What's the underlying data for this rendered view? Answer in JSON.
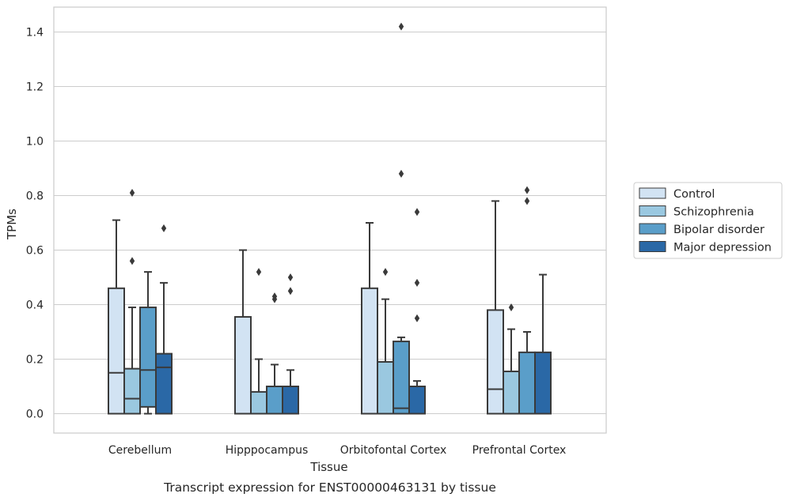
{
  "chart_data": {
    "type": "box",
    "caption": "Transcript expression for ENST00000463131 by tissue",
    "xlabel": "Tissue",
    "ylabel": "TPMs",
    "ylim": [
      -0.07,
      1.49
    ],
    "yticks": [
      0.0,
      0.2,
      0.4,
      0.6,
      0.8,
      1.0,
      1.2,
      1.4
    ],
    "ytick_labels": [
      "0.0",
      "0.2",
      "0.4",
      "0.6",
      "0.8",
      "1.0",
      "1.2",
      "1.4"
    ],
    "grid": true,
    "legend_position": "right",
    "categories": [
      "Cerebellum",
      "Hipppocampus",
      "Orbitofontal Cortex",
      "Prefrontal Cortex"
    ],
    "series": [
      {
        "name": "Control",
        "color": "#d2e3f3",
        "boxes": [
          {
            "whisker_low": 0.0,
            "q1": 0.0,
            "median": 0.15,
            "q3": 0.46,
            "whisker_high": 0.71,
            "outliers": []
          },
          {
            "whisker_low": 0.0,
            "q1": 0.0,
            "median": 0.0,
            "q3": 0.355,
            "whisker_high": 0.6,
            "outliers": []
          },
          {
            "whisker_low": 0.0,
            "q1": 0.0,
            "median": 0.0,
            "q3": 0.46,
            "whisker_high": 0.7,
            "outliers": []
          },
          {
            "whisker_low": 0.0,
            "q1": 0.0,
            "median": 0.09,
            "q3": 0.38,
            "whisker_high": 0.78,
            "outliers": []
          }
        ]
      },
      {
        "name": "Schizophrenia",
        "color": "#9ac8e0",
        "boxes": [
          {
            "whisker_low": 0.0,
            "q1": 0.0,
            "median": 0.055,
            "q3": 0.165,
            "whisker_high": 0.39,
            "outliers": [
              0.56,
              0.81
            ]
          },
          {
            "whisker_low": 0.0,
            "q1": 0.0,
            "median": 0.0,
            "q3": 0.08,
            "whisker_high": 0.2,
            "outliers": [
              0.52
            ]
          },
          {
            "whisker_low": 0.0,
            "q1": 0.0,
            "median": 0.0,
            "q3": 0.19,
            "whisker_high": 0.42,
            "outliers": [
              0.52
            ]
          },
          {
            "whisker_low": 0.0,
            "q1": 0.0,
            "median": 0.0,
            "q3": 0.155,
            "whisker_high": 0.31,
            "outliers": [
              0.39
            ]
          }
        ]
      },
      {
        "name": "Bipolar disorder",
        "color": "#5a9ec9",
        "boxes": [
          {
            "whisker_low": 0.0,
            "q1": 0.025,
            "median": 0.16,
            "q3": 0.39,
            "whisker_high": 0.52,
            "outliers": []
          },
          {
            "whisker_low": 0.0,
            "q1": 0.0,
            "median": 0.0,
            "q3": 0.1,
            "whisker_high": 0.18,
            "outliers": [
              0.42,
              0.43
            ]
          },
          {
            "whisker_low": 0.0,
            "q1": 0.0,
            "median": 0.02,
            "q3": 0.265,
            "whisker_high": 0.28,
            "outliers": [
              0.88,
              1.42
            ]
          },
          {
            "whisker_low": 0.0,
            "q1": 0.0,
            "median": 0.0,
            "q3": 0.225,
            "whisker_high": 0.3,
            "outliers": [
              0.78,
              0.82
            ]
          }
        ]
      },
      {
        "name": "Major depression",
        "color": "#2a68a6",
        "boxes": [
          {
            "whisker_low": 0.0,
            "q1": 0.0,
            "median": 0.17,
            "q3": 0.22,
            "whisker_high": 0.48,
            "outliers": [
              0.68
            ]
          },
          {
            "whisker_low": 0.0,
            "q1": 0.0,
            "median": 0.0,
            "q3": 0.1,
            "whisker_high": 0.16,
            "outliers": [
              0.45,
              0.5
            ]
          },
          {
            "whisker_low": 0.0,
            "q1": 0.0,
            "median": 0.0,
            "q3": 0.1,
            "whisker_high": 0.12,
            "outliers": [
              0.35,
              0.48,
              0.74
            ]
          },
          {
            "whisker_low": 0.0,
            "q1": 0.0,
            "median": 0.0,
            "q3": 0.225,
            "whisker_high": 0.51,
            "outliers": []
          }
        ]
      }
    ]
  }
}
